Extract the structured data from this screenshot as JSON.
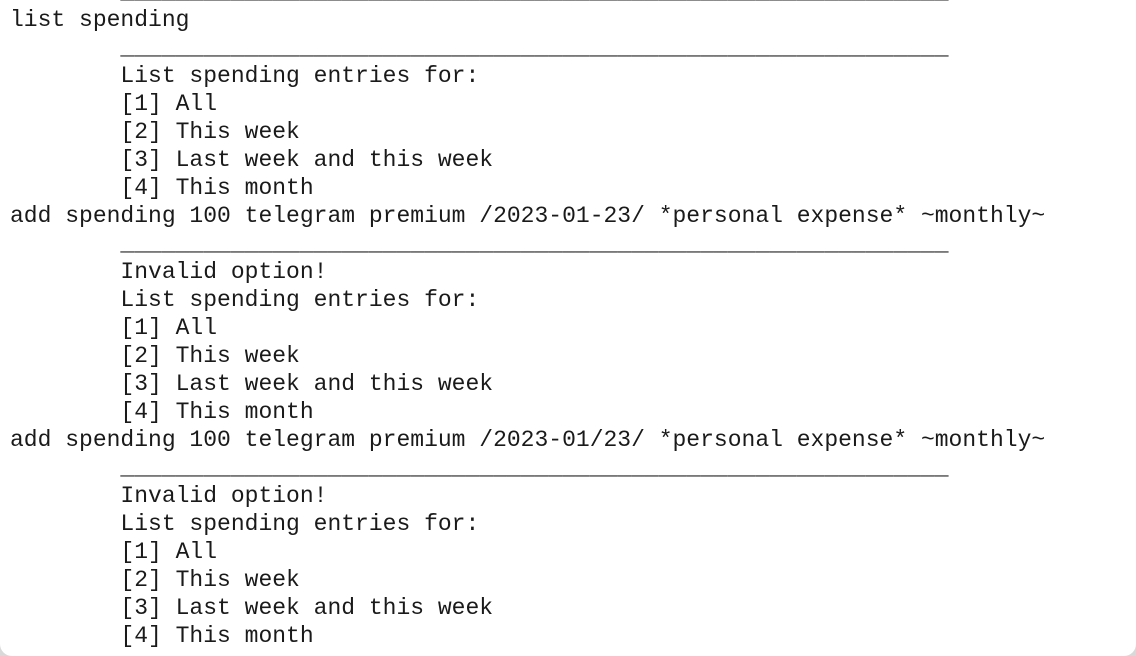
{
  "terminal": {
    "lines": [
      "        ____________________________________________________________",
      "list spending",
      "        ____________________________________________________________",
      "        List spending entries for:",
      "        [1] All",
      "        [2] This week",
      "        [3] Last week and this week",
      "        [4] This month",
      "add spending 100 telegram premium /2023-01-23/ *personal expense* ~monthly~",
      "        ____________________________________________________________",
      "        Invalid option!",
      "        List spending entries for:",
      "        [1] All",
      "        [2] This week",
      "        [3] Last week and this week",
      "        [4] This month",
      "add spending 100 telegram premium /2023-01/23/ *personal expense* ~monthly~",
      "        ____________________________________________________________",
      "        Invalid option!",
      "        List spending entries for:",
      "        [1] All",
      "        [2] This week",
      "        [3] Last week and this week",
      "        [4] This month"
    ]
  }
}
